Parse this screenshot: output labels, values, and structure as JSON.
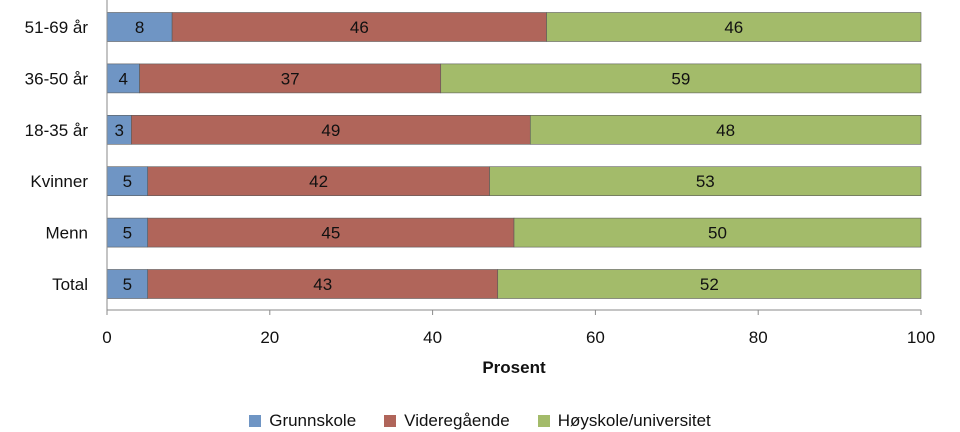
{
  "chart_data": {
    "type": "bar",
    "orientation": "horizontal",
    "stacked": true,
    "categories": [
      "51-69 år",
      "36-50 år",
      "18-35 år",
      "Kvinner",
      "Menn",
      "Total"
    ],
    "series": [
      {
        "name": "Grunnskole",
        "color": "#6F95C4",
        "values": [
          8,
          4,
          3,
          5,
          5,
          5
        ]
      },
      {
        "name": "Videregående",
        "color": "#B0655A",
        "values": [
          46,
          37,
          49,
          42,
          45,
          43
        ]
      },
      {
        "name": "Høyskole/universitet",
        "color": "#A3BB6A",
        "values": [
          46,
          59,
          48,
          53,
          50,
          52
        ]
      }
    ],
    "xlabel": "Prosent",
    "xlim": [
      0,
      100
    ],
    "xticks": [
      0,
      20,
      40,
      60,
      80,
      100
    ],
    "grid": false,
    "legend_position": "bottom",
    "data_labels": true
  }
}
